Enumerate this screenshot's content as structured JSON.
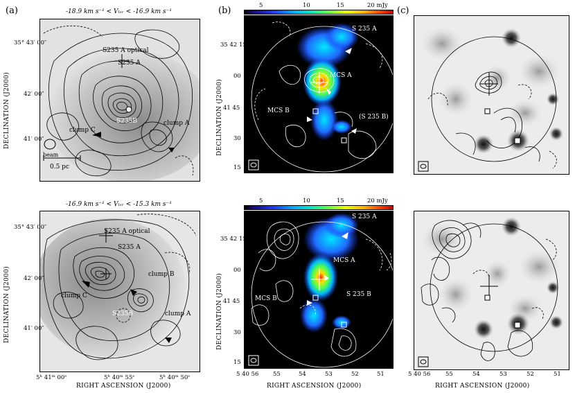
{
  "figure": {
    "panel_a_label": "(a)",
    "panel_b_label": "(b)",
    "panel_c_label": "(c)",
    "velocity_range_top": "-18.9 km s⁻¹ < Vₗₛᵣ < -16.9 km s⁻¹",
    "velocity_range_bottom": "-16.9 km s⁻¹ < Vₗₛᵣ < -15.3 km s⁻¹",
    "ylabel": "DECLINATION (J2000)",
    "xlabel": "RIGHT ASCENSION (J2000)",
    "colorbar": {
      "ticks": [
        "5",
        "10",
        "15",
        "20 mJy"
      ],
      "unit": "mJy"
    },
    "panel_a": {
      "dec_ticks": [
        "35° 43′ 00″",
        "42′ 00″",
        "41′ 00″"
      ],
      "ra_ticks": [
        "5ʰ 41ᵐ 00ˢ",
        "5ʰ 40ᵐ 55ˢ",
        "5ʰ 40ᵐ 50ˢ"
      ],
      "top_labels": {
        "optical": "S235 A optical",
        "s235a": "S235 A",
        "s235b": "S235B",
        "clump_c": "clump C",
        "clump_a": "clump A",
        "beam": "beam",
        "scale": "0.5 pc"
      },
      "bottom_labels": {
        "optical": "S235 A optical",
        "s235a": "S235 A",
        "clump_b": "clump B",
        "clump_c": "clump C",
        "s235b": "S235B",
        "clump_a": "clump A"
      }
    },
    "panel_b": {
      "dec_ticks": [
        "35 42 15",
        "00",
        "41 45",
        "30",
        "15"
      ],
      "ra_ticks": [
        "5 40 56",
        "55",
        "54",
        "53",
        "52",
        "51"
      ],
      "top_labels": {
        "s235a": "S 235 A",
        "mcs_a": "MCS A",
        "mcs_b": "MCS B",
        "s235b": "(S 235 B)"
      },
      "bottom_labels": {
        "s235a": "S 235 A",
        "mcs_a": "MCS A",
        "mcs_b": "MCS B",
        "s235b": "S 235 B"
      }
    },
    "panel_c": {
      "ra_ticks": [
        "5 40 56",
        "55",
        "54",
        "53",
        "52",
        "51"
      ]
    }
  }
}
